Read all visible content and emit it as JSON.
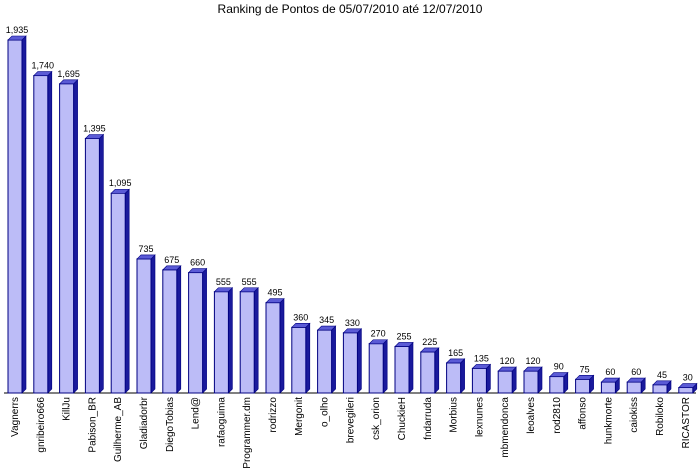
{
  "chart_data": {
    "type": "bar",
    "title": "Ranking de Pontos de 05/07/2010 até 12/07/2010",
    "xlabel": "",
    "ylabel": "",
    "ylim": [
      0,
      1935
    ],
    "grid": false,
    "legend": "none",
    "bar_fill": "#bcbcf7",
    "bar_top": "#5b5bd6",
    "bar_side": "#1a1a9c",
    "bar_edge": "#000080",
    "categories": [
      "Vagnerrs",
      "gnribeiro666",
      "KillJu",
      "Pabison_BR",
      "Guilherme_AB",
      "Gladiadorbr",
      "DiegoTobias",
      "Lend@",
      "rafaoguima",
      "Programmer.dm",
      "rodrizzo",
      "Mergonit",
      "o_olho",
      "brevegileri",
      "csk_orion",
      "ChuckieH",
      "fndarruda",
      "Morbius",
      "lexnunes",
      "mbmendonca",
      "leoalves",
      "rod2810",
      "affonso",
      "hunkmorte",
      "caiokiss",
      "Robiloko",
      "RICASTOR"
    ],
    "values": [
      1935,
      1740,
      1695,
      1395,
      1095,
      735,
      675,
      660,
      555,
      555,
      495,
      360,
      345,
      330,
      270,
      255,
      225,
      165,
      135,
      120,
      120,
      90,
      75,
      60,
      60,
      45,
      30
    ],
    "value_labels": [
      "1,935",
      "1,740",
      "1,695",
      "1,395",
      "1,095",
      "735",
      "675",
      "660",
      "555",
      "555",
      "495",
      "360",
      "345",
      "330",
      "270",
      "255",
      "225",
      "165",
      "135",
      "120",
      "120",
      "90",
      "75",
      "60",
      "60",
      "45",
      "30"
    ]
  }
}
